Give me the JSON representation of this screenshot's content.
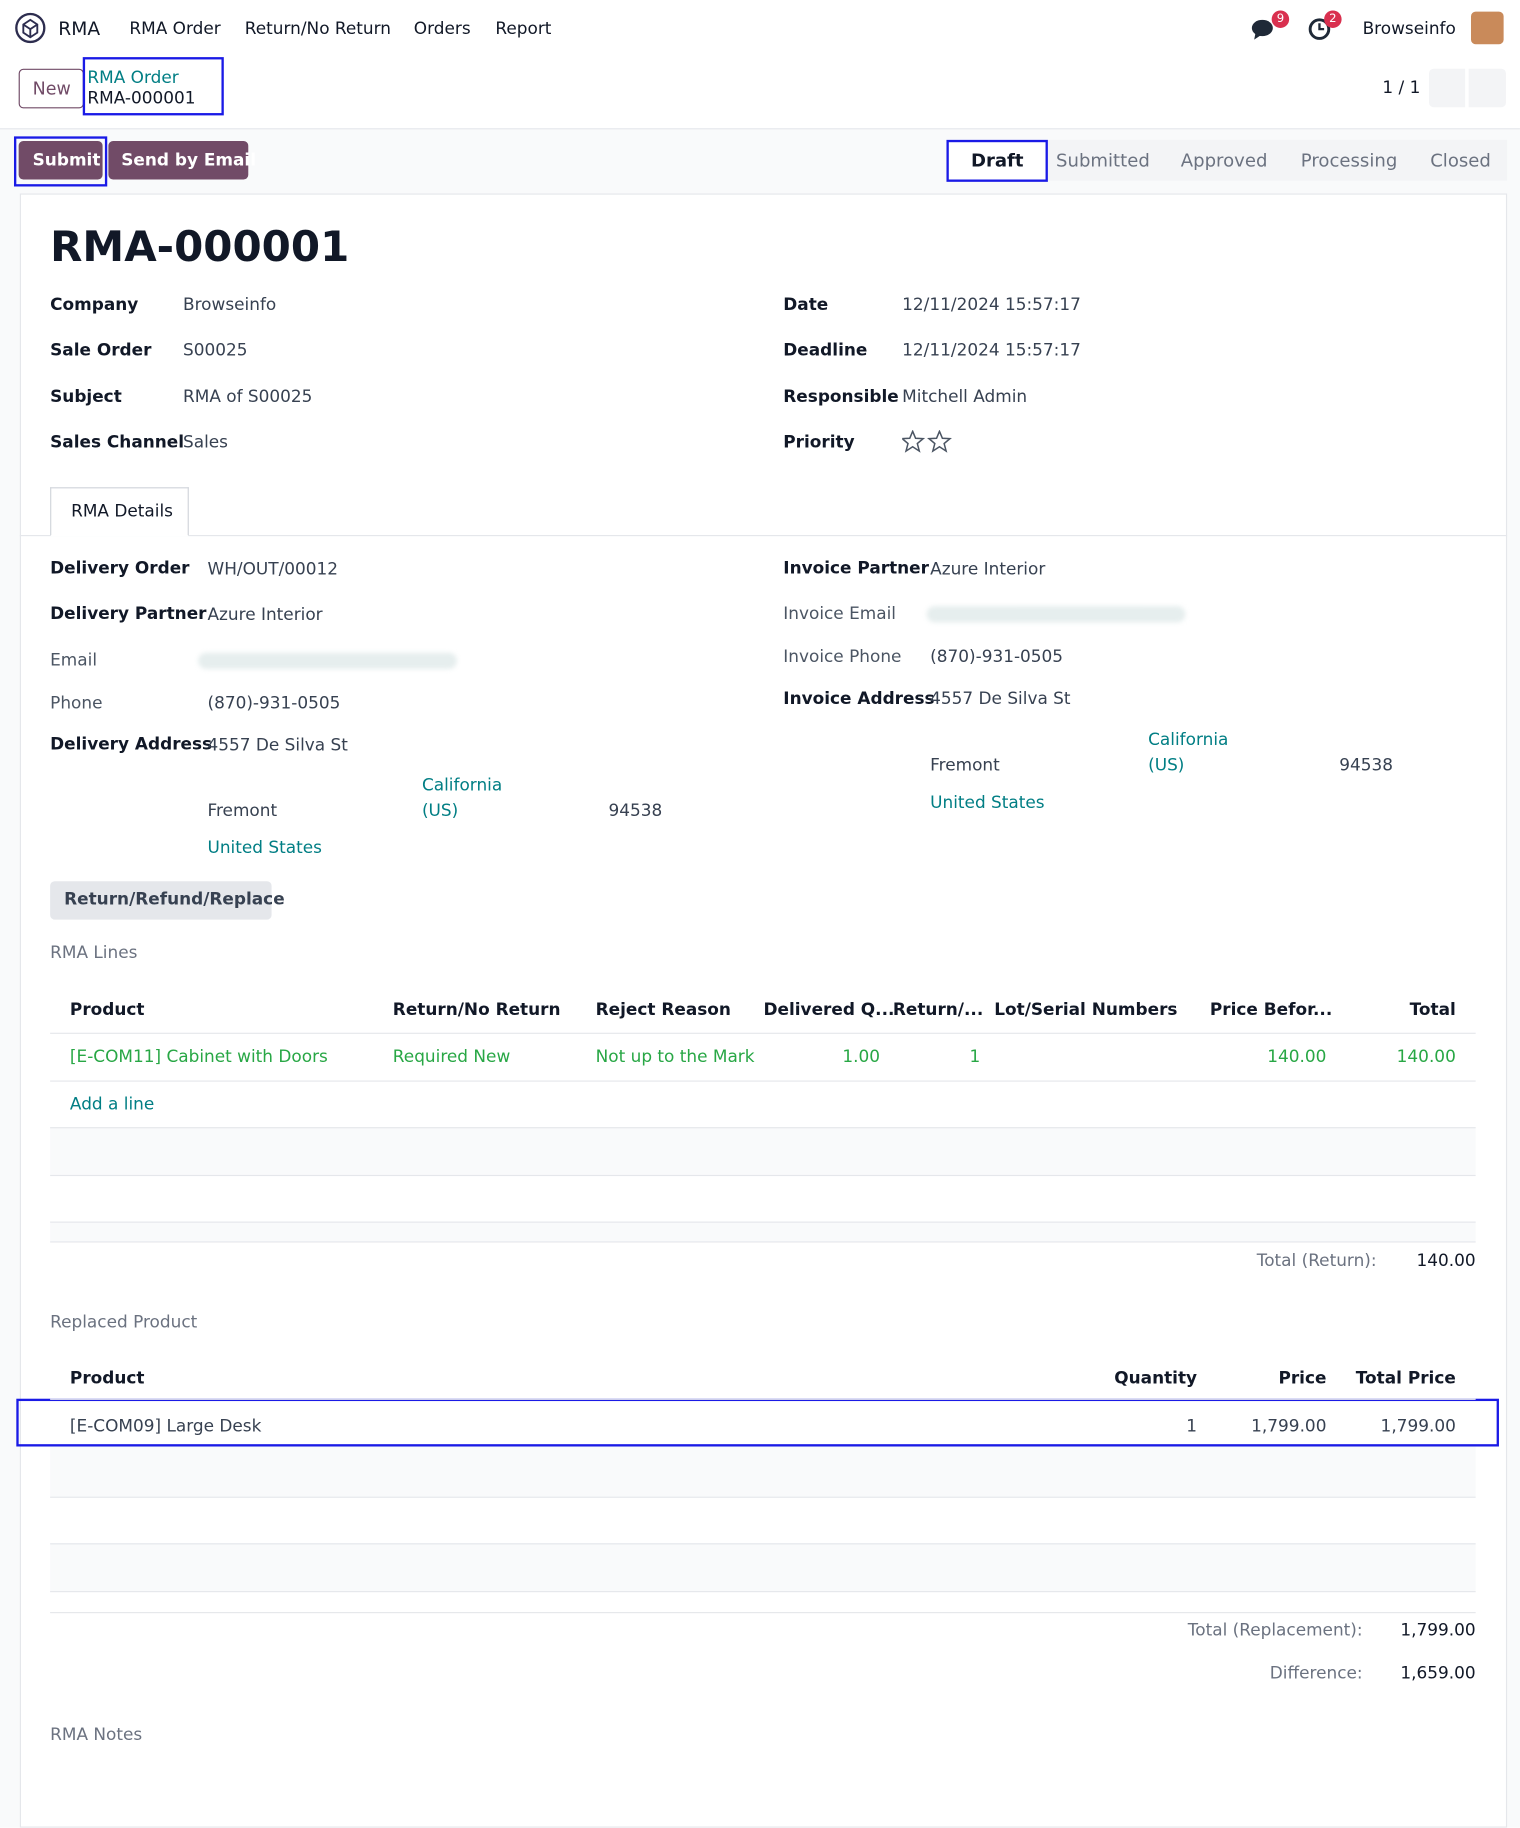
{
  "nav": {
    "brand": "RMA",
    "menu": [
      "RMA Order",
      "Return/No Return",
      "Orders",
      "Report"
    ],
    "messages": "9",
    "activities": "2",
    "user": "Browseinfo"
  },
  "breadcrumb": {
    "new": "New",
    "parent": "RMA Order",
    "current": "RMA-000001",
    "pager": "1 / 1"
  },
  "actions": [
    "Submit",
    "Send by Email"
  ],
  "stages": [
    "Draft",
    "Submitted",
    "Approved",
    "Processing",
    "Closed"
  ],
  "form": {
    "title": "RMA-000001",
    "left": [
      [
        "Company",
        "Browseinfo"
      ],
      [
        "Sale Order",
        "S00025"
      ],
      [
        "Subject",
        "RMA of S00025"
      ],
      [
        "Sales Channel",
        "Sales"
      ]
    ],
    "right": [
      [
        "Date",
        "12/11/2024 15:57:17"
      ],
      [
        "Deadline",
        "12/11/2024 15:57:17"
      ],
      [
        "Responsible",
        "Mitchell Admin"
      ]
    ],
    "priority": "Priority"
  },
  "tab": "RMA Details",
  "delivery": {
    "order": [
      "Delivery Order",
      "WH/OUT/00012"
    ],
    "partner": [
      "Delivery Partner",
      "Azure Interior"
    ],
    "email": "Email",
    "phone": [
      "Phone",
      "(870)-931-0505"
    ],
    "address": [
      "Delivery Address",
      "4557 De Silva St"
    ],
    "city": "Fremont",
    "state": "California",
    "state_code": "(US)",
    "zip": "94538",
    "country": "United States"
  },
  "invoice": {
    "partner": [
      "Invoice Partner",
      "Azure Interior"
    ],
    "email": "Invoice Email",
    "phone": [
      "Invoice Phone",
      "(870)-931-0505"
    ],
    "address": [
      "Invoice Address",
      "4557 De Silva St"
    ],
    "city": "Fremont",
    "state": "California",
    "state_code": "(US)",
    "zip": "94538",
    "country": "United States"
  },
  "button": "Return/Refund/Replace",
  "rma_lines": {
    "title": "RMA Lines",
    "headers": [
      "Product",
      "Return/No Return",
      "Reject Reason",
      "Delivered Q...",
      "Return/...",
      "Lot/Serial Numbers",
      "Price Befor...",
      "Total"
    ],
    "rows": [
      [
        "[E-COM11] Cabinet with Doors",
        "Required New",
        "Not up to the Mark",
        "1.00",
        "1",
        "",
        "140.00",
        "140.00"
      ]
    ],
    "add": "Add a line",
    "total_label": "Total (Return):",
    "total": "140.00"
  },
  "replaced": {
    "title": "Replaced Product",
    "headers": [
      "Product",
      "Quantity",
      "Price",
      "Total Price"
    ],
    "rows": [
      [
        "[E-COM09] Large Desk",
        "1",
        "1,799.00",
        "1,799.00"
      ]
    ],
    "total_label": "Total (Replacement):",
    "total": "1,799.00",
    "difference_label": "Difference:",
    "difference": "1,659.00"
  },
  "notes": "RMA Notes"
}
